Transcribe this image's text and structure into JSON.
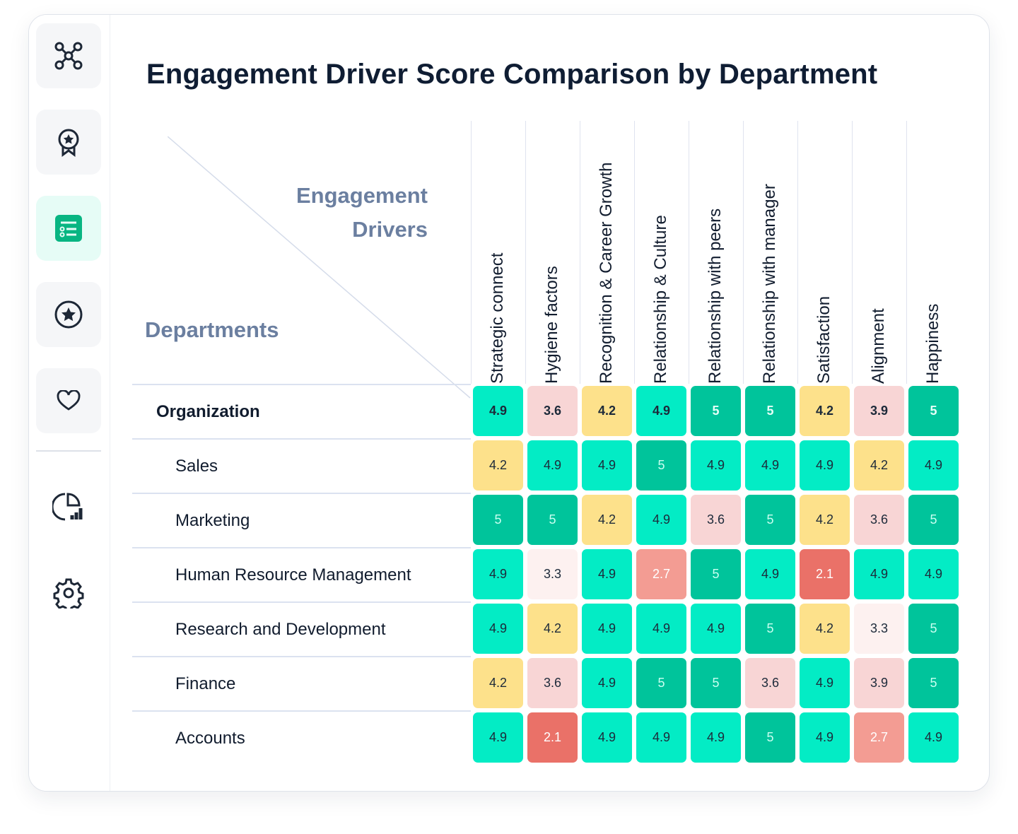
{
  "sidebar": {
    "items": [
      {
        "icon": "network-icon",
        "active": false
      },
      {
        "icon": "award-icon",
        "active": false
      },
      {
        "icon": "list-icon",
        "active": true
      },
      {
        "icon": "star-circle-icon",
        "active": false
      },
      {
        "icon": "heart-icon",
        "active": false
      },
      {
        "icon": "analytics-icon",
        "active": false
      },
      {
        "icon": "gear-icon",
        "active": false
      }
    ]
  },
  "chart_data": {
    "type": "heatmap",
    "title": "Engagement Driver Score Comparison by Department",
    "xlabel": "Engagement Drivers",
    "ylabel": "Departments",
    "columns": [
      "Strategic connect",
      "Hygiene factors",
      "Recognition & Career Growth",
      "Relationship & Culture",
      "Relationship with peers",
      "Relationship with manager",
      "Satisfaction",
      "Alignment",
      "Happiness"
    ],
    "rows": [
      "Organization",
      "Sales",
      "Marketing",
      "Human Resource Management",
      "Research and Development",
      "Finance",
      "Accounts"
    ],
    "values": [
      [
        4.9,
        3.6,
        4.2,
        4.9,
        5,
        5,
        4.2,
        3.9,
        5
      ],
      [
        4.2,
        4.9,
        4.9,
        5,
        4.9,
        4.9,
        4.9,
        4.2,
        4.9
      ],
      [
        5,
        5,
        4.2,
        4.9,
        3.6,
        5,
        4.2,
        3.6,
        5
      ],
      [
        4.9,
        3.3,
        4.9,
        2.7,
        5,
        4.9,
        2.1,
        4.9,
        4.9
      ],
      [
        4.9,
        4.2,
        4.9,
        4.9,
        4.9,
        5,
        4.2,
        3.3,
        5
      ],
      [
        4.2,
        3.6,
        4.9,
        5,
        5,
        3.6,
        4.9,
        3.9,
        5
      ],
      [
        4.9,
        2.1,
        4.9,
        4.9,
        4.9,
        5,
        4.9,
        2.7,
        4.9
      ]
    ],
    "color_scale": {
      "5": "#00c49b",
      "4.9": "#03ecc5",
      "4.2": "#fde18b",
      "3.9": "#f8d5d5",
      "3.6": "#f8d5d5",
      "3.3": "#fdf1f0",
      "2.7": "#f39c93",
      "2.1": "#ea7168"
    }
  }
}
